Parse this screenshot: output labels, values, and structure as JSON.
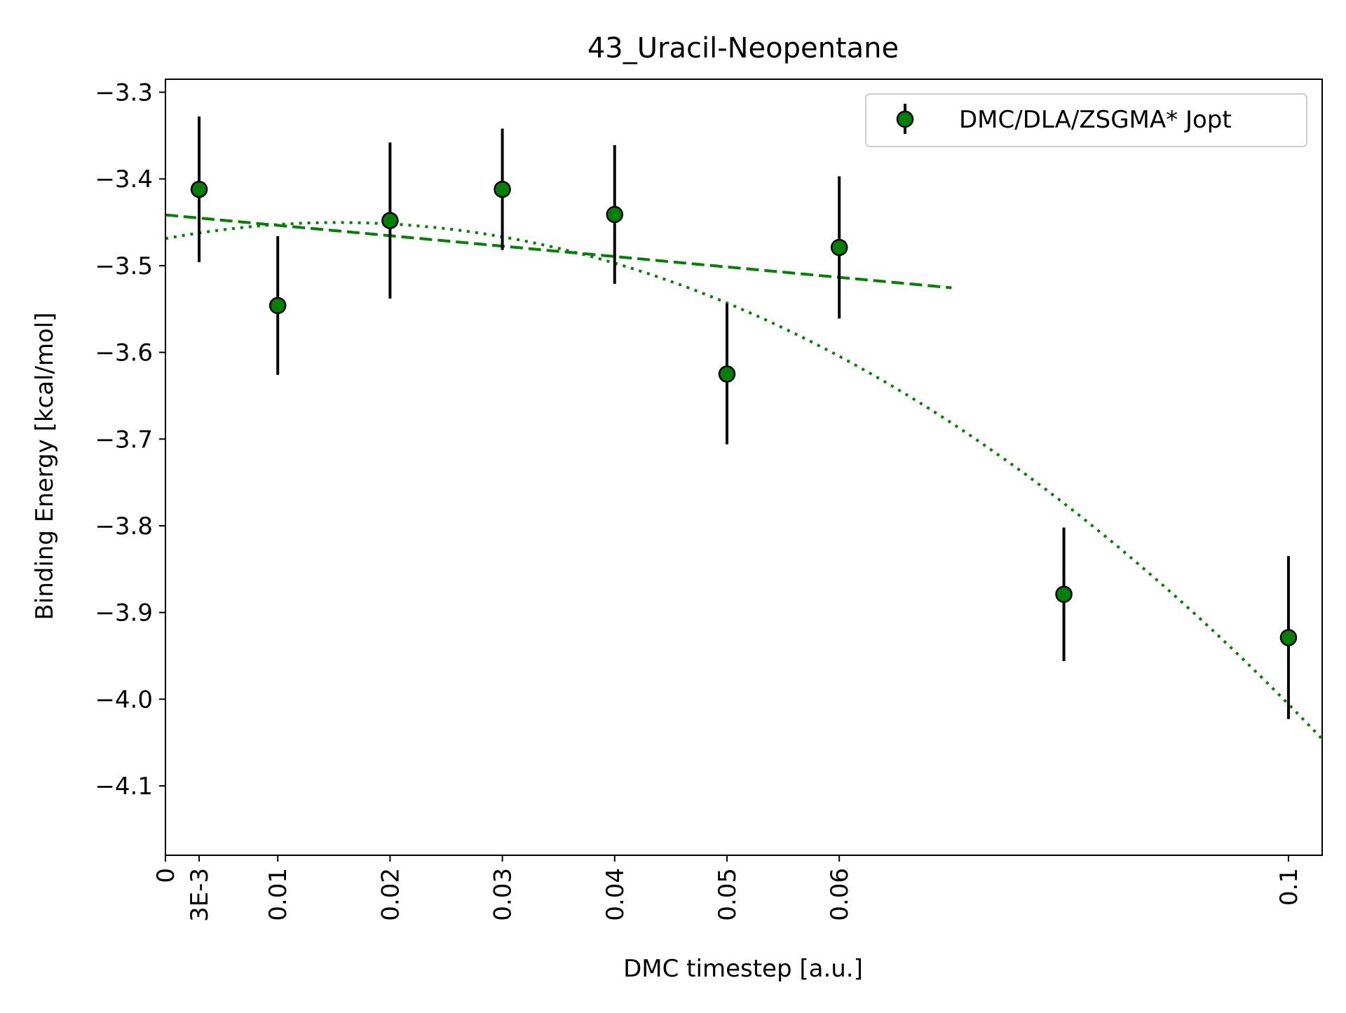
{
  "chart_data": {
    "type": "scatter",
    "title": "43_Uracil-Neopentane",
    "xlabel": "DMC timestep [a.u.]",
    "ylabel": "Binding Energy [kcal/mol]",
    "xlim": [
      0,
      0.103
    ],
    "ylim": [
      -4.18,
      -3.285
    ],
    "x_ticks": [
      {
        "value": 0,
        "label": "0"
      },
      {
        "value": 0.003,
        "label": "3E-3"
      },
      {
        "value": 0.01,
        "label": "0.01"
      },
      {
        "value": 0.02,
        "label": "0.02"
      },
      {
        "value": 0.03,
        "label": "0.03"
      },
      {
        "value": 0.04,
        "label": "0.04"
      },
      {
        "value": 0.05,
        "label": "0.05"
      },
      {
        "value": 0.06,
        "label": "0.06"
      },
      {
        "value": 0.1,
        "label": "0.1"
      }
    ],
    "y_ticks": [
      {
        "value": -3.3,
        "label": "−3.3"
      },
      {
        "value": -3.4,
        "label": "−3.4"
      },
      {
        "value": -3.5,
        "label": "−3.5"
      },
      {
        "value": -3.6,
        "label": "−3.6"
      },
      {
        "value": -3.7,
        "label": "−3.7"
      },
      {
        "value": -3.8,
        "label": "−3.8"
      },
      {
        "value": -3.9,
        "label": "−3.9"
      },
      {
        "value": -4.0,
        "label": "−4.0"
      },
      {
        "value": -4.1,
        "label": "−4.1"
      }
    ],
    "series": [
      {
        "name": "DMC/DLA/ZSGMA* Jopt",
        "color": "#008000",
        "points": [
          {
            "x": 0.003,
            "y": -3.412,
            "err": 0.084
          },
          {
            "x": 0.01,
            "y": -3.546,
            "err": 0.08
          },
          {
            "x": 0.02,
            "y": -3.448,
            "err": 0.09
          },
          {
            "x": 0.03,
            "y": -3.412,
            "err": 0.07
          },
          {
            "x": 0.04,
            "y": -3.441,
            "err": 0.08
          },
          {
            "x": 0.05,
            "y": -3.625,
            "err": 0.081
          },
          {
            "x": 0.06,
            "y": -3.479,
            "err": 0.082
          },
          {
            "x": 0.08,
            "y": -3.879,
            "err": 0.077
          },
          {
            "x": 0.1,
            "y": -3.929,
            "err": 0.094
          }
        ]
      }
    ],
    "fits": [
      {
        "style": "dashed",
        "color": "#008000",
        "model": "linear",
        "x_range": [
          0,
          0.07
        ],
        "intercept": -3.4415,
        "slope": -1.2
      },
      {
        "style": "dotted",
        "color": "#008000",
        "model": "quadratic",
        "x_range": [
          0,
          0.103
        ],
        "c0": -3.4688,
        "c1": 2.4,
        "c2": -77.7
      }
    ],
    "grid": false,
    "legend": "top-right"
  }
}
